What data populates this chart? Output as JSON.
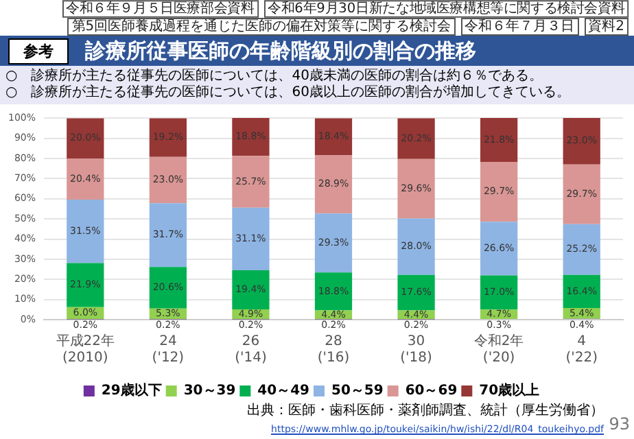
{
  "chart_data": {
    "type": "bar",
    "title": "診療所従事医師の年齢階級別の割合の推移",
    "stacked": true,
    "grid": "y",
    "legend": "bottom",
    "categories": [
      "平成22年\n(2010)",
      "24\n('12)",
      "26\n('14)",
      "28\n('16)",
      "30\n('18)",
      "令和2年\n('20)",
      "4\n('22)"
    ],
    "ylim": [
      0,
      100
    ],
    "yticks": [
      {
        "value": 0,
        "label": "0%"
      },
      {
        "value": 10,
        "label": "10%"
      },
      {
        "value": 20,
        "label": "20%"
      },
      {
        "value": 30,
        "label": "30%"
      },
      {
        "value": 40,
        "label": "40%"
      },
      {
        "value": 50,
        "label": "50%"
      },
      {
        "value": 60,
        "label": "60%"
      },
      {
        "value": 70,
        "label": "70%"
      },
      {
        "value": 80,
        "label": "80%"
      },
      {
        "value": 90,
        "label": "90%"
      },
      {
        "value": 100,
        "label": "100%"
      }
    ],
    "series": [
      {
        "name": "29歳以下",
        "color": "#7030a0",
        "values": [
          0.2,
          0.2,
          0.2,
          0.2,
          0.2,
          0.3,
          0.4
        ],
        "value_labels": [
          "0.2%",
          "0.2%",
          "0.2%",
          "0.2%",
          "0.2%",
          "0.3%",
          "0.4%"
        ]
      },
      {
        "name": "30～39",
        "color": "#92d050",
        "values": [
          6.0,
          5.3,
          4.9,
          4.4,
          4.4,
          4.7,
          5.4
        ],
        "value_labels": [
          "6.0%",
          "5.3%",
          "4.9%",
          "4.4%",
          "4.4%",
          "4.7%",
          "5.4%"
        ]
      },
      {
        "name": "40～49",
        "color": "#00b050",
        "values": [
          21.9,
          20.6,
          19.4,
          18.8,
          17.6,
          17.0,
          16.4
        ],
        "value_labels": [
          "21.9%",
          "20.6%",
          "19.4%",
          "18.8%",
          "17.6%",
          "17.0%",
          "16.4%"
        ]
      },
      {
        "name": "50～59",
        "color": "#8eb4e3",
        "values": [
          31.5,
          31.7,
          31.1,
          29.3,
          28.0,
          26.6,
          25.2
        ],
        "value_labels": [
          "31.5%",
          "31.7%",
          "31.1%",
          "29.3%",
          "28.0%",
          "26.6%",
          "25.2%"
        ]
      },
      {
        "name": "60～69",
        "color": "#d99694",
        "values": [
          20.4,
          23.0,
          25.7,
          28.9,
          29.6,
          29.7,
          29.7
        ],
        "value_labels": [
          "20.4%",
          "23.0%",
          "25.7%",
          "28.9%",
          "29.6%",
          "29.7%",
          "29.7%"
        ]
      },
      {
        "name": "70歳以上",
        "color": "#953735",
        "values": [
          20.0,
          19.2,
          18.8,
          18.4,
          20.2,
          21.8,
          23.0
        ],
        "value_labels": [
          "20.0%",
          "19.2%",
          "18.8%",
          "18.4%",
          "20.2%",
          "21.8%",
          "23.0%"
        ]
      }
    ],
    "annotations": [
      "参考",
      "令和６年９月５日医療部会資料",
      "令和6年9月30日新たな地域医療構想等に関する検討会資料",
      "第5回医師養成過程を通じた医師の偏在対策等に関する検討会",
      "令和６年７月３日",
      "資料2",
      "○　診療所が主たる従事先の医師については、40歳未満の医師の割合は約６％である。",
      "○　診療所が主たる従事先の医師については、60歳以上の医師の割合が増加してきている。",
      "出典：医師・歯科医師・薬剤師調査、統計（厚生労働省）",
      "https://www.mhlw.go.jp/toukei/saikin/hw/ishi/22/dl/R04_toukeihyo.pdf",
      "93"
    ]
  }
}
